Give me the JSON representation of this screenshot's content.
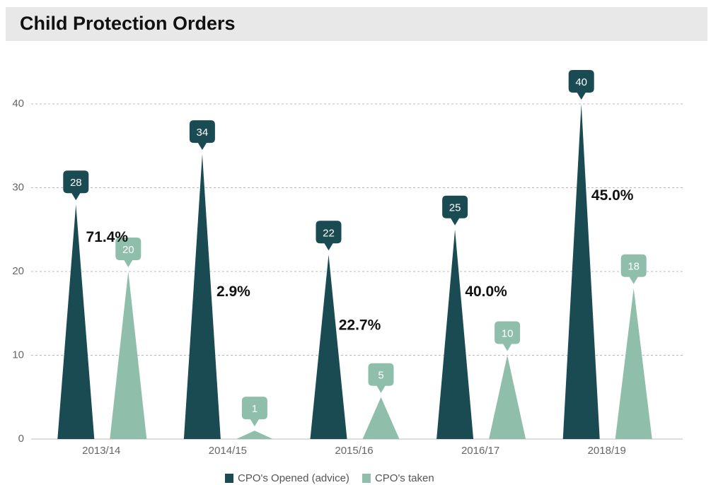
{
  "chart_data": {
    "type": "triangle-bar",
    "title": "Child  Protection Orders",
    "categories": [
      "2013/14",
      "2014/15",
      "2015/16",
      "2016/17",
      "2018/19"
    ],
    "series": [
      {
        "name": "CPO's Opened (advice)",
        "color": "#1a4a52",
        "values": [
          28,
          34,
          22,
          25,
          40
        ]
      },
      {
        "name": "CPO's taken",
        "color": "#8fbfab",
        "values": [
          20,
          1,
          5,
          10,
          18
        ]
      }
    ],
    "annotations": [
      "71.4%",
      "2.9%",
      "22.7%",
      "40.0%",
      "45.0%"
    ],
    "ylim": [
      0,
      40
    ],
    "yticks": [
      0,
      10,
      20,
      30,
      40
    ],
    "grid": true
  }
}
